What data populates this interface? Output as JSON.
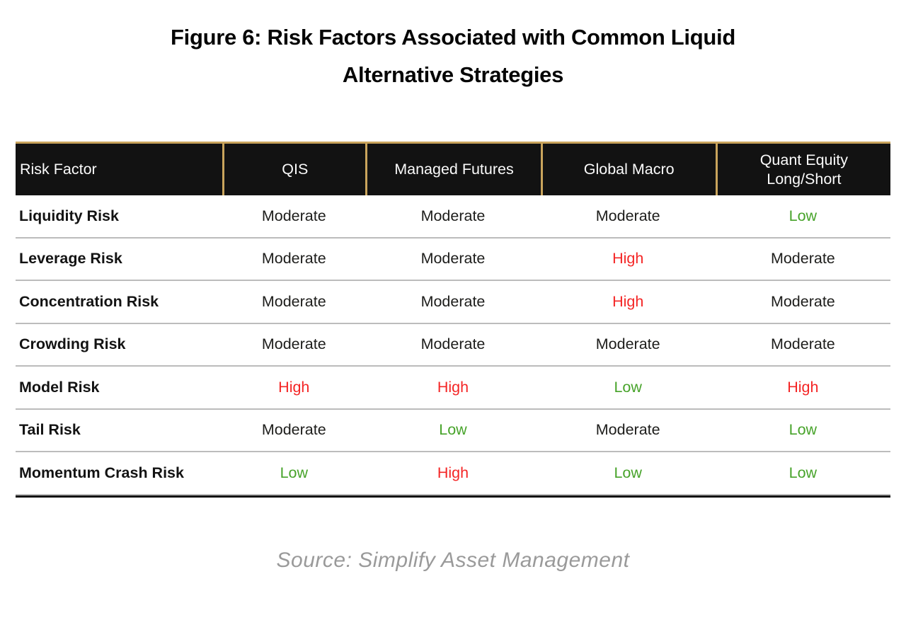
{
  "figure": {
    "title_line1": "Figure 6: Risk Factors Associated with Common Liquid",
    "title_line2": "Alternative Strategies",
    "source": "Source: Simplify Asset Management"
  },
  "colors": {
    "high": "#f42525",
    "moderate": "#1d1d1b",
    "low": "#47a32a",
    "header_bg": "#121212",
    "gold_border": "#c9a45c",
    "row_separator": "#bcbcbc",
    "source_text": "#9a9a9a"
  },
  "chart_data": {
    "type": "table",
    "title": "Figure 6: Risk Factors Associated with Common Liquid Alternative Strategies",
    "columns": [
      "Risk Factor",
      "QIS",
      "Managed Futures",
      "Global Macro",
      "Quant Equity\nLong/Short"
    ],
    "rows": [
      {
        "risk_factor": "Liquidity Risk",
        "values": [
          "Moderate",
          "Moderate",
          "Moderate",
          "Low"
        ]
      },
      {
        "risk_factor": "Leverage Risk",
        "values": [
          "Moderate",
          "Moderate",
          "High",
          "Moderate"
        ]
      },
      {
        "risk_factor": "Concentration Risk",
        "values": [
          "Moderate",
          "Moderate",
          "High",
          "Moderate"
        ]
      },
      {
        "risk_factor": "Crowding Risk",
        "values": [
          "Moderate",
          "Moderate",
          "Moderate",
          "Moderate"
        ]
      },
      {
        "risk_factor": "Model Risk",
        "values": [
          "High",
          "High",
          "Low",
          "High"
        ]
      },
      {
        "risk_factor": "Tail Risk",
        "values": [
          "Moderate",
          "Low",
          "Moderate",
          "Low"
        ]
      },
      {
        "risk_factor": "Momentum Crash Risk",
        "values": [
          "Low",
          "High",
          "Low",
          "Low"
        ]
      }
    ],
    "value_color_coding": {
      "High": "red",
      "Moderate": "black",
      "Low": "green"
    },
    "source": "Source: Simplify Asset Management",
    "legend_position": "none",
    "grid": "horizontal-row-separators"
  }
}
